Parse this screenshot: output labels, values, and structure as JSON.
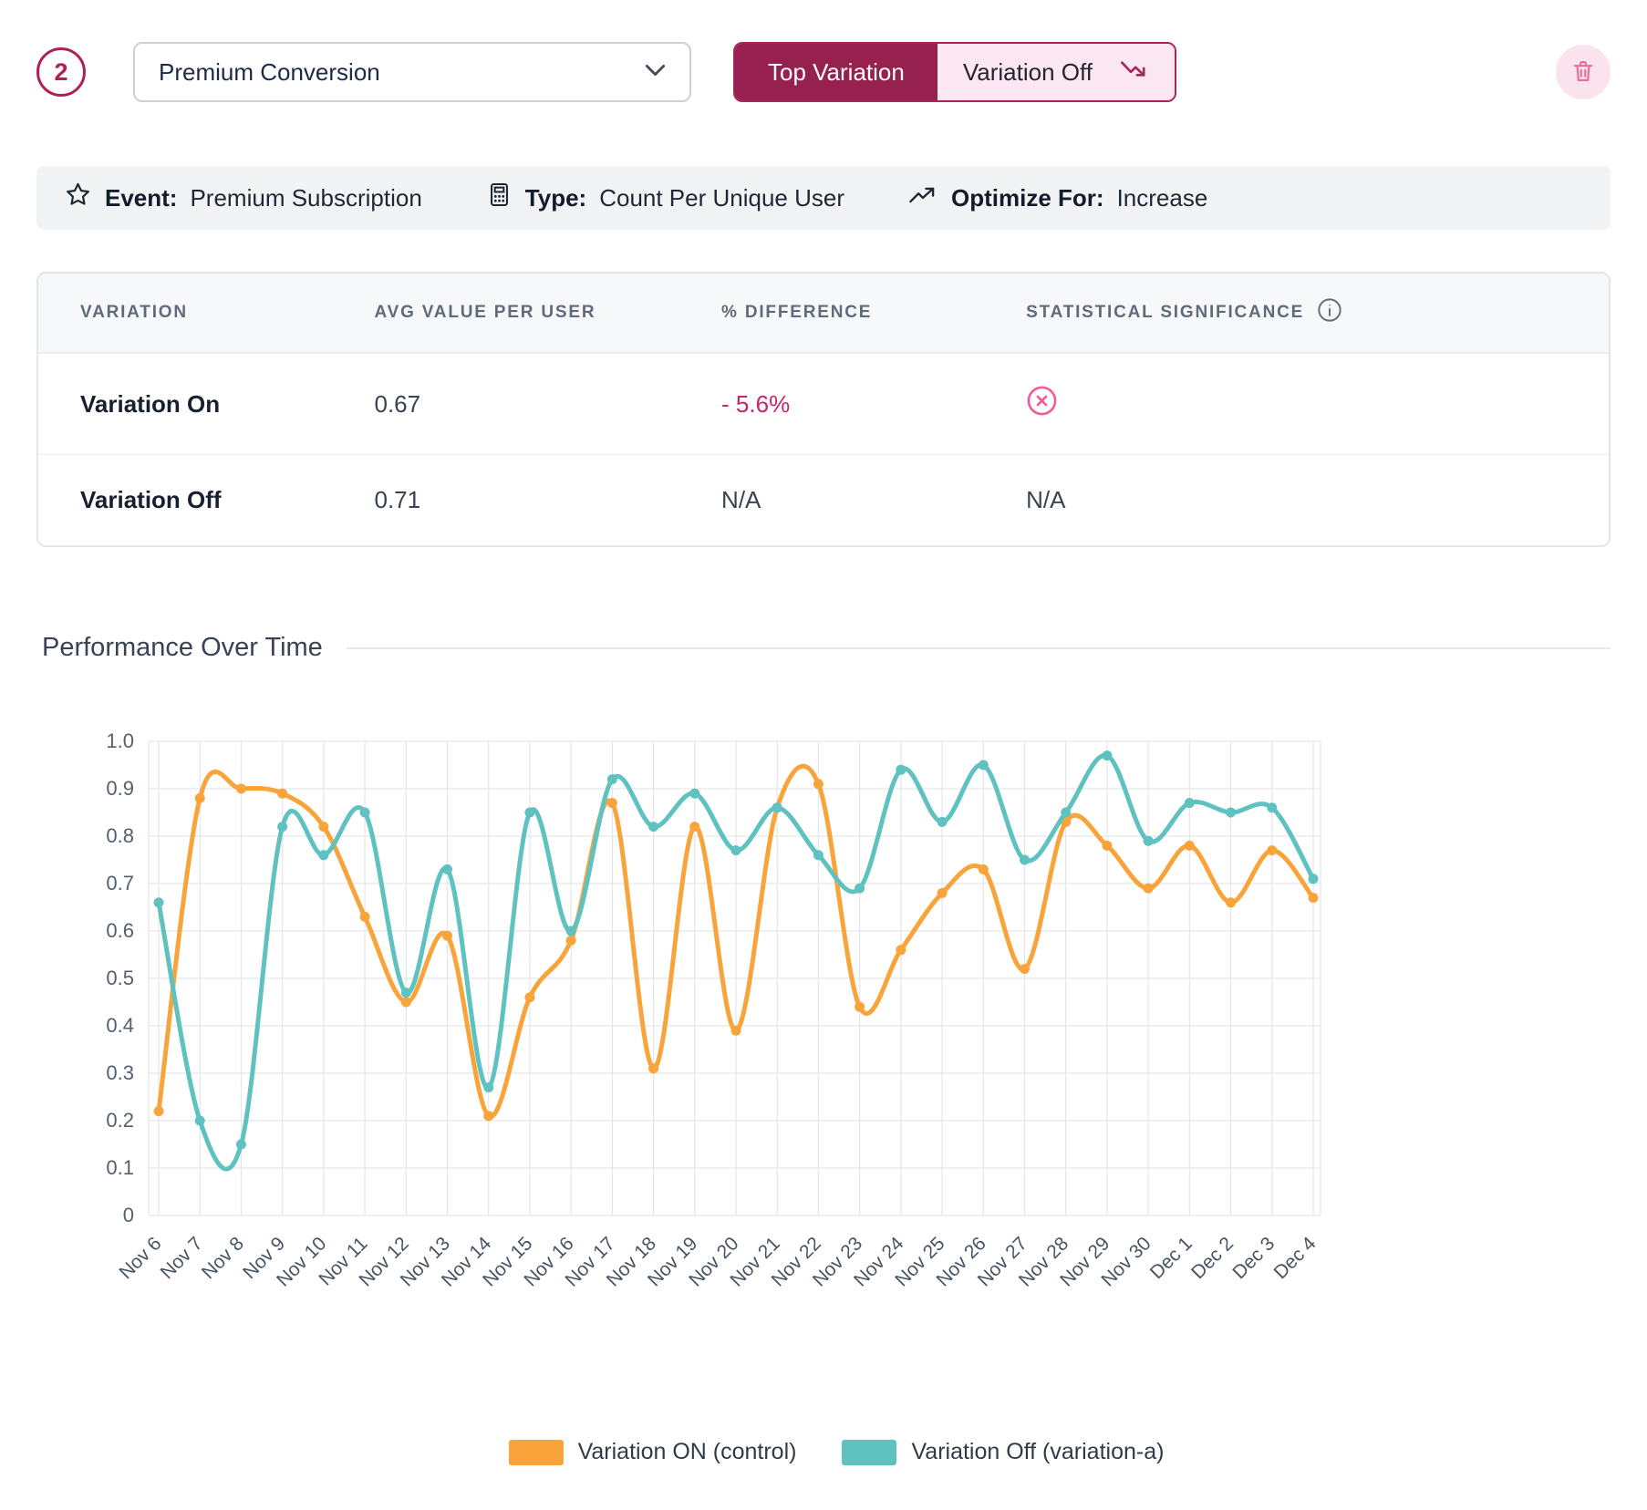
{
  "colors": {
    "maroon": "#96204E",
    "crimson_border": "#A8245C",
    "pink_icon": "#EF5C97",
    "pink_bg": "#FBE7F1",
    "negative_text": "#C9246A",
    "orange_series": "#F9A43B",
    "teal_series": "#5FC2C0"
  },
  "toolbar": {
    "index_badge": "2",
    "metric_select": {
      "value": "Premium Conversion"
    },
    "winner_toggle": {
      "primary_label": "Top Variation",
      "value_label": "Variation Off"
    }
  },
  "summary_bar": {
    "event": {
      "label": "Event:",
      "value": "Premium Subscription"
    },
    "type": {
      "label": "Type:",
      "value": "Count Per Unique User"
    },
    "optimize": {
      "label": "Optimize For:",
      "value": "Increase"
    }
  },
  "results_table": {
    "headers": [
      "VARIATION",
      "AVG VALUE PER USER",
      "% DIFFERENCE",
      "STATISTICAL SIGNIFICANCE"
    ],
    "rows": [
      {
        "variation": "Variation On",
        "avg_value": "0.67",
        "difference": "- 5.6%",
        "significance": "not-significant"
      },
      {
        "variation": "Variation Off",
        "avg_value": "0.71",
        "difference": "N/A",
        "significance": "N/A"
      }
    ]
  },
  "chart_data": {
    "type": "line",
    "title": "Performance Over Time",
    "xlabel": "",
    "ylabel": "",
    "ylim": [
      0,
      1
    ],
    "ytick_step": 0.1,
    "grid": true,
    "legend_position": "bottom",
    "x": [
      "Nov 6",
      "Nov 7",
      "Nov 8",
      "Nov 9",
      "Nov 10",
      "Nov 11",
      "Nov 12",
      "Nov 13",
      "Nov 14",
      "Nov 15",
      "Nov 16",
      "Nov 17",
      "Nov 18",
      "Nov 19",
      "Nov 20",
      "Nov 21",
      "Nov 22",
      "Nov 23",
      "Nov 24",
      "Nov 25",
      "Nov 26",
      "Nov 27",
      "Nov 28",
      "Nov 29",
      "Nov 30",
      "Dec 1",
      "Dec 2",
      "Dec 3",
      "Dec 4"
    ],
    "series": [
      {
        "name": "Variation ON (control)",
        "color": "#F9A43B",
        "values": [
          0.22,
          0.88,
          0.9,
          0.89,
          0.82,
          0.63,
          0.45,
          0.59,
          0.21,
          0.46,
          0.58,
          0.87,
          0.31,
          0.82,
          0.39,
          0.86,
          0.91,
          0.44,
          0.56,
          0.68,
          0.73,
          0.52,
          0.83,
          0.78,
          0.69,
          0.78,
          0.66,
          0.77,
          0.67
        ]
      },
      {
        "name": "Variation Off (variation-a)",
        "color": "#5FC2C0",
        "values": [
          0.66,
          0.2,
          0.15,
          0.82,
          0.76,
          0.85,
          0.47,
          0.73,
          0.27,
          0.85,
          0.6,
          0.92,
          0.82,
          0.89,
          0.77,
          0.86,
          0.76,
          0.69,
          0.94,
          0.83,
          0.95,
          0.75,
          0.85,
          0.97,
          0.79,
          0.87,
          0.85,
          0.86,
          0.71
        ]
      }
    ]
  },
  "icons": {
    "metric_select": "chevron-down-icon",
    "winner_toggle": "trend-down-icon",
    "delete": "trash-icon",
    "event": "star-icon",
    "type": "calculator-icon",
    "optimize": "trend-up-icon",
    "significance_header": "info-icon",
    "not_significant": "circle-x-icon"
  }
}
